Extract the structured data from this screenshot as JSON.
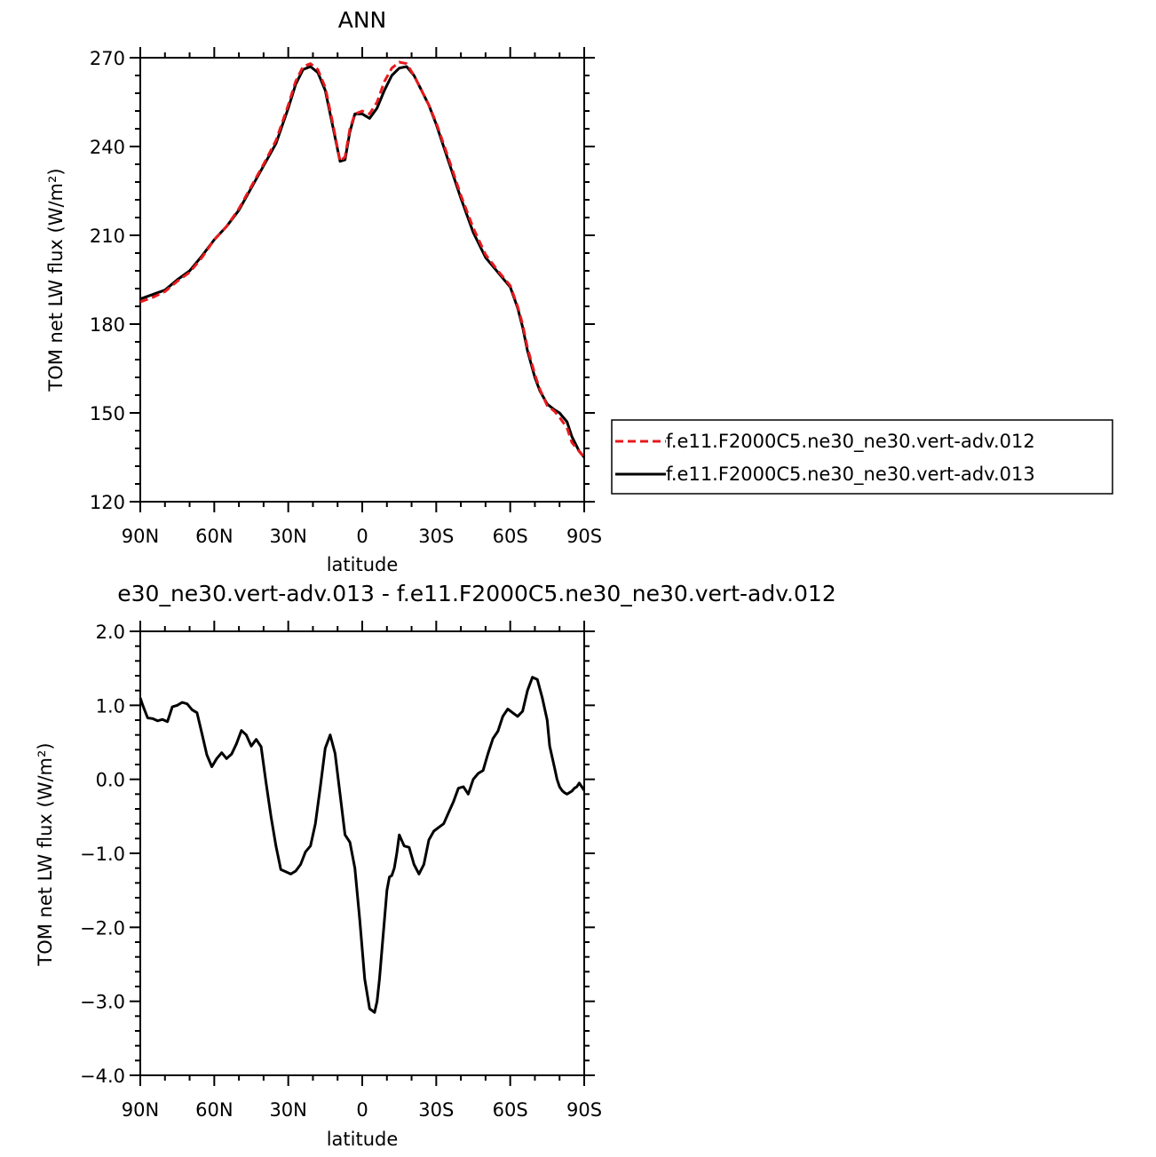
{
  "colors": {
    "exp012": "#e8191c",
    "exp013": "#000000",
    "diff": "#000000"
  },
  "chart_data": [
    {
      "type": "line",
      "title": "ANN",
      "xlabel": "latitude",
      "ylabel": "TOM net LW flux (W/m²)",
      "xlim": [
        -90,
        90
      ],
      "ylim": [
        120,
        270
      ],
      "xticks": [
        -90,
        -60,
        -30,
        0,
        30,
        60,
        90
      ],
      "xtick_labels": [
        "90N",
        "60N",
        "30N",
        "0",
        "30S",
        "60S",
        "90S"
      ],
      "yticks": [
        120,
        150,
        180,
        210,
        240,
        270
      ],
      "ytick_labels": [
        "120",
        "150",
        "180",
        "210",
        "240",
        "270"
      ],
      "legend": "right",
      "series": [
        {
          "name": "f.e11.F2000C5.ne30_ne30.vert-adv.012",
          "style": "dashed",
          "x": [
            -90,
            -85,
            -80,
            -75,
            -70,
            -65,
            -60,
            -55,
            -50,
            -45,
            -40,
            -35,
            -30,
            -27,
            -24,
            -21,
            -18,
            -15,
            -12,
            -9,
            -7,
            -5,
            -3,
            0,
            3,
            6,
            9,
            12,
            15,
            18,
            21,
            24,
            27,
            30,
            35,
            40,
            45,
            50,
            55,
            60,
            63,
            65,
            67,
            70,
            72,
            75,
            78,
            80,
            83,
            85,
            88,
            90
          ],
          "y": [
            187.5,
            189,
            191,
            194.5,
            197.5,
            202.5,
            208.5,
            213,
            219,
            226.5,
            234,
            242,
            254,
            262,
            267,
            268,
            266,
            260,
            248,
            235,
            236.5,
            246,
            251,
            252,
            251,
            255,
            262,
            266.5,
            268.5,
            268,
            264,
            259,
            254,
            248,
            236,
            223.5,
            212.5,
            203.5,
            198,
            193,
            186,
            180,
            172,
            163,
            158,
            152.5,
            150.5,
            148.5,
            145,
            140,
            137,
            135
          ]
        },
        {
          "name": "f.e11.F2000C5.ne30_ne30.vert-adv.013",
          "style": "solid",
          "x": [
            -90,
            -85,
            -80,
            -75,
            -70,
            -65,
            -60,
            -55,
            -50,
            -45,
            -40,
            -35,
            -30,
            -27,
            -24,
            -21,
            -18,
            -15,
            -12,
            -9,
            -7,
            -5,
            -3,
            0,
            3,
            6,
            9,
            12,
            15,
            18,
            21,
            24,
            27,
            30,
            35,
            40,
            45,
            50,
            55,
            60,
            63,
            65,
            67,
            70,
            72,
            75,
            78,
            80,
            83,
            85,
            88,
            90
          ],
          "y": [
            188.5,
            190,
            191.5,
            195,
            198,
            203,
            208.5,
            213,
            218.5,
            226,
            233.5,
            241,
            253,
            261,
            266,
            267,
            265,
            259,
            247,
            235,
            235.5,
            245,
            251,
            251,
            249.5,
            253,
            259,
            264,
            266.5,
            267,
            264,
            259,
            254,
            247.5,
            235,
            222.5,
            211,
            202.5,
            197.5,
            192.5,
            185.5,
            179,
            171,
            162,
            157.5,
            153,
            151,
            150,
            147,
            142,
            137,
            135
          ]
        }
      ]
    },
    {
      "type": "line",
      "title": "e30_ne30.vert-adv.013 - f.e11.F2000C5.ne30_ne30.vert-adv.012",
      "xlabel": "latitude",
      "ylabel": "TOM net LW flux (W/m²)",
      "xlim": [
        -90,
        90
      ],
      "ylim": [
        -4,
        2
      ],
      "xticks": [
        -90,
        -60,
        -30,
        0,
        30,
        60,
        90
      ],
      "xtick_labels": [
        "90N",
        "60N",
        "30N",
        "0",
        "30S",
        "60S",
        "90S"
      ],
      "yticks": [
        -4,
        -3,
        -2,
        -1,
        0,
        1,
        2
      ],
      "ytick_labels": [
        "−4.0",
        "−3.0",
        "−2.0",
        "−1.0",
        "0.0",
        "1.0",
        "2.0"
      ],
      "series": [
        {
          "x": [
            -90,
            -89,
            -87,
            -85,
            -83,
            -81,
            -79,
            -77,
            -75,
            -73,
            -71,
            -69,
            -67,
            -65,
            -63,
            -61,
            -59,
            -57,
            -55,
            -53,
            -51,
            -49,
            -47,
            -45,
            -43,
            -41,
            -39,
            -37,
            -35,
            -33,
            -31,
            -29,
            -27,
            -25,
            -23,
            -21,
            -19,
            -17,
            -15,
            -13,
            -11,
            -9,
            -7,
            -5,
            -3,
            -1,
            1,
            3,
            5,
            6,
            7,
            8,
            9,
            10,
            11,
            12,
            13,
            14,
            15,
            17,
            19,
            21,
            23,
            25,
            27,
            29,
            31,
            33,
            35,
            37,
            39,
            41,
            43,
            45,
            47,
            49,
            51,
            53,
            55,
            57,
            59,
            61,
            63,
            65,
            67,
            69,
            71,
            73,
            75,
            76,
            77,
            78,
            79,
            80,
            81,
            82,
            83,
            84,
            85,
            86,
            87,
            88,
            89,
            90
          ],
          "y": [
            1.1,
            1.0,
            0.83,
            0.82,
            0.79,
            0.81,
            0.78,
            0.98,
            1.0,
            1.04,
            1.02,
            0.94,
            0.9,
            0.62,
            0.33,
            0.17,
            0.28,
            0.36,
            0.28,
            0.34,
            0.48,
            0.66,
            0.6,
            0.45,
            0.54,
            0.44,
            -0.05,
            -0.5,
            -0.9,
            -1.22,
            -1.25,
            -1.28,
            -1.24,
            -1.15,
            -0.98,
            -0.9,
            -0.6,
            -0.1,
            0.42,
            0.6,
            0.35,
            -0.2,
            -0.75,
            -0.85,
            -1.2,
            -1.9,
            -2.7,
            -3.1,
            -3.15,
            -3.0,
            -2.7,
            -2.3,
            -1.9,
            -1.5,
            -1.32,
            -1.3,
            -1.2,
            -1.0,
            -0.75,
            -0.9,
            -0.92,
            -1.15,
            -1.28,
            -1.15,
            -0.82,
            -0.7,
            -0.65,
            -0.6,
            -0.45,
            -0.3,
            -0.12,
            -0.1,
            -0.2,
            0.0,
            0.08,
            0.12,
            0.35,
            0.55,
            0.65,
            0.85,
            0.95,
            0.9,
            0.85,
            0.92,
            1.2,
            1.38,
            1.35,
            1.1,
            0.8,
            0.45,
            0.3,
            0.15,
            0.0,
            -0.1,
            -0.15,
            -0.18,
            -0.2,
            -0.18,
            -0.16,
            -0.12,
            -0.1,
            -0.05,
            -0.1,
            -0.15
          ]
        }
      ]
    }
  ]
}
